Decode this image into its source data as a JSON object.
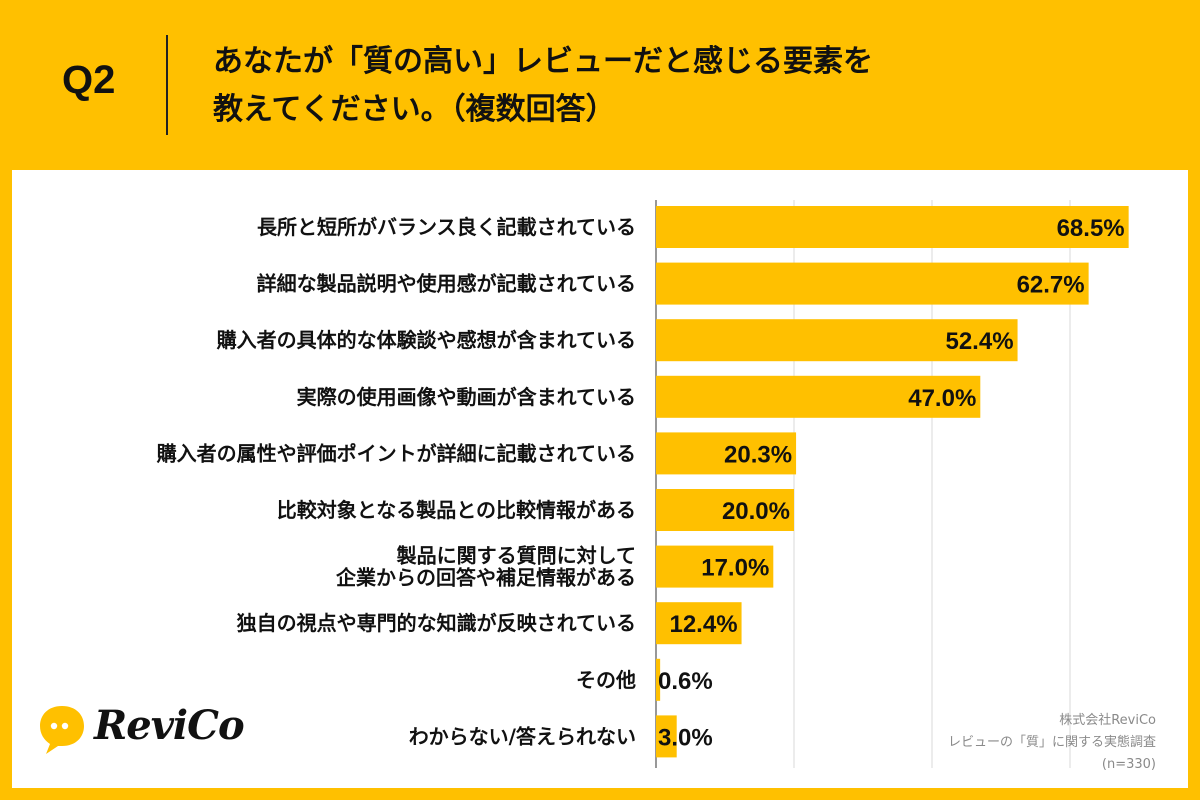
{
  "header": {
    "q_label": "Q2",
    "title_line1": "あなたが「質の高い」レビューだと感じる要素を",
    "title_line2": "教えてください。（複数回答）"
  },
  "colors": {
    "background": "#FFC000",
    "bar": "#FFC000",
    "panel": "#FFFFFF",
    "grid": "#D9D9D9"
  },
  "chart_data": {
    "type": "bar",
    "orientation": "horizontal",
    "categories": [
      [
        "長所と短所がバランス良く記載されている"
      ],
      [
        "詳細な製品説明や使用感が記載されている"
      ],
      [
        "購入者の具体的な体験談や感想が含まれている"
      ],
      [
        "実際の使用画像や動画が含まれている"
      ],
      [
        "購入者の属性や評価ポイントが詳細に記載されている"
      ],
      [
        "比較対象となる製品との比較情報がある"
      ],
      [
        "製品に関する質問に対して",
        "企業からの回答や補足情報がある"
      ],
      [
        "独自の視点や専門的な知識が反映されている"
      ],
      [
        "その他"
      ],
      [
        "わからない/答えられない"
      ]
    ],
    "values": [
      68.5,
      62.7,
      52.4,
      47.0,
      20.3,
      20.0,
      17.0,
      12.4,
      0.6,
      3.0
    ],
    "value_labels": [
      "68.5%",
      "62.7%",
      "52.4%",
      "47.0%",
      "20.3%",
      "20.0%",
      "17.0%",
      "12.4%",
      "0.6%",
      "3.0%"
    ],
    "xlim": [
      0,
      80
    ],
    "gridlines": [
      0,
      20,
      40,
      60,
      80
    ],
    "grid": true,
    "unit": "%"
  },
  "logo": {
    "text": "ReviCo"
  },
  "source": {
    "company": "株式会社ReviCo",
    "survey": "レビューの「質」に関する実態調査",
    "sample": "(n=330)"
  }
}
